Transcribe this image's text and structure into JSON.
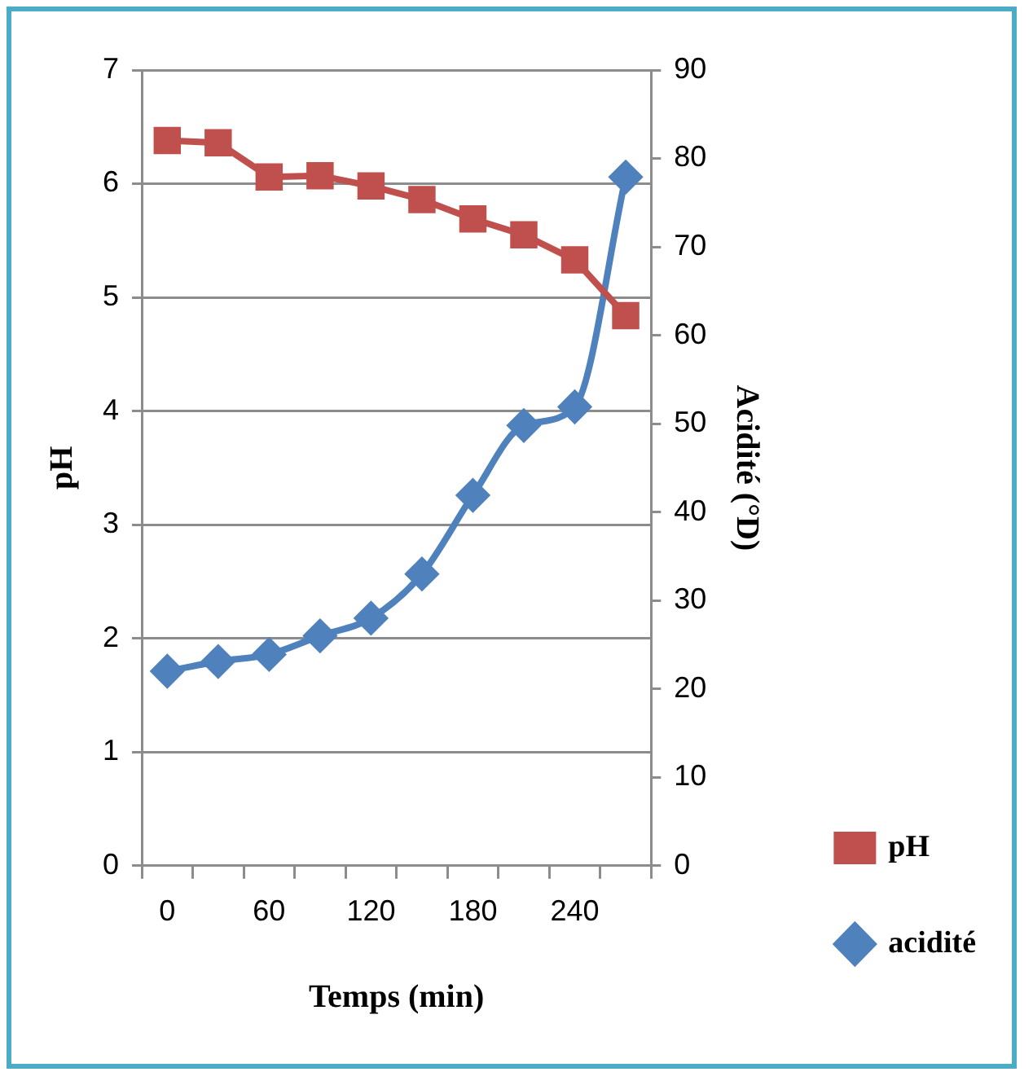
{
  "chart_data": {
    "type": "line",
    "xlabel": "Temps (min)",
    "ylabel": "pH",
    "y2label": "Acidité (°D)",
    "categories": [
      "0",
      null,
      "60",
      null,
      "120",
      null,
      "180",
      null,
      "240",
      null
    ],
    "series": [
      {
        "name": "pH",
        "color": "#c0504d",
        "marker": "square",
        "values": [
          6.38,
          6.36,
          6.06,
          6.07,
          5.98,
          5.86,
          5.69,
          5.55,
          5.33,
          4.84
        ]
      },
      {
        "name": "acidité",
        "color": "#4f81bd",
        "marker": "diamond",
        "axis": "y2",
        "values": [
          22,
          23.1,
          23.9,
          26,
          28,
          33,
          41.9,
          49.8,
          51.9,
          77.9
        ]
      }
    ],
    "ylim": [
      0,
      7
    ],
    "yticks": [
      0,
      1,
      2,
      3,
      4,
      5,
      6,
      7
    ],
    "y2lim": [
      0,
      90
    ],
    "y2ticks": [
      0,
      10,
      20,
      30,
      40,
      50,
      60,
      70,
      80,
      90
    ],
    "grid": "y",
    "legend": "right"
  }
}
